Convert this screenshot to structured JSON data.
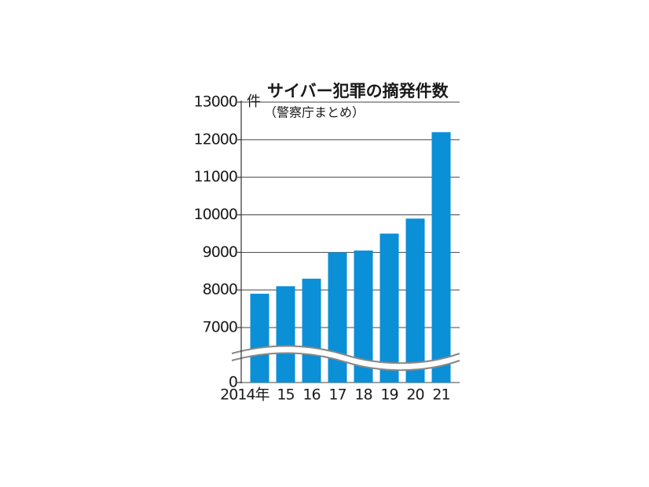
{
  "chart_data": {
    "type": "bar",
    "title": "サイバー犯罪の摘発件数",
    "subtitle": "（警察庁まとめ）",
    "y_unit": "件",
    "categories": [
      "2014年",
      "15",
      "16",
      "17",
      "18",
      "19",
      "20",
      "21"
    ],
    "values": [
      7900,
      8100,
      8300,
      9000,
      9050,
      9500,
      9900,
      12200
    ],
    "color": "#0b8fd6",
    "ylim": [
      0,
      13000
    ],
    "yticks": [
      0,
      7000,
      8000,
      9000,
      10000,
      11000,
      12000,
      13000
    ],
    "broken_axis": true,
    "grid": true
  }
}
